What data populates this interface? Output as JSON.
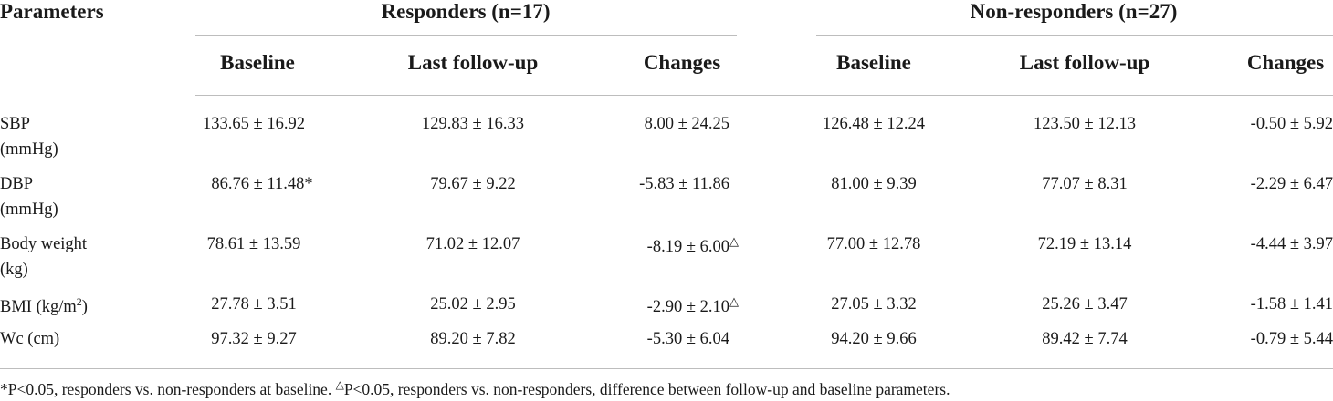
{
  "table": {
    "header": {
      "parameters": "Parameters",
      "group1": "Responders (n=17)",
      "group2": "Non-responders (n=27)",
      "subcols": [
        "Baseline",
        "Last follow-up",
        "Changes"
      ]
    },
    "rows": [
      {
        "param_line1": "SBP",
        "param_line2": "(mmHg)",
        "r_baseline": "133.65 ± 16.92",
        "r_followup": "129.83 ± 16.33",
        "r_changes": "8.00 ± 24.25",
        "n_baseline": "126.48 ± 12.24",
        "n_followup": "123.50 ± 12.13",
        "n_changes": "-0.50 ± 5.92"
      },
      {
        "param_line1": "DBP",
        "param_line2": "(mmHg)",
        "r_baseline": "86.76 ± 11.48*",
        "r_followup": "79.67 ± 9.22",
        "r_changes": "-5.83 ± 11.86",
        "n_baseline": "81.00 ± 9.39",
        "n_followup": "77.07 ± 8.31",
        "n_changes": "-2.29 ± 6.47"
      },
      {
        "param_line1": "Body weight",
        "param_line2": "(kg)",
        "r_baseline": "78.61 ± 13.59",
        "r_followup": "71.02 ± 12.07",
        "r_changes": "-8.19 ± 6.00",
        "r_changes_mark": "△",
        "n_baseline": "77.00 ± 12.78",
        "n_followup": "72.19 ± 13.14",
        "n_changes": "-4.44 ± 3.97"
      },
      {
        "param_line1": "BMI (kg/m",
        "param_sup": "2",
        "param_close": ")",
        "r_baseline": "27.78 ± 3.51",
        "r_followup": "25.02 ± 2.95",
        "r_changes": "-2.90 ± 2.10",
        "r_changes_mark": "△",
        "n_baseline": "27.05 ± 3.32",
        "n_followup": "25.26 ± 3.47",
        "n_changes": "-1.58 ± 1.41"
      },
      {
        "param_line1": "Wc (cm)",
        "r_baseline": "97.32 ± 9.27",
        "r_followup": "89.20 ± 7.82",
        "r_changes": "-5.30 ± 6.04",
        "n_baseline": "94.20 ± 9.66",
        "n_followup": "89.42 ± 7.74",
        "n_changes": "-0.79 ± 5.44"
      }
    ],
    "footnote": {
      "part1": "*P<0.05, responders vs. non-responders at baseline.",
      "mark": "△",
      "part2": "P<0.05, responders vs. non-responders, difference between follow-up and baseline parameters."
    }
  }
}
